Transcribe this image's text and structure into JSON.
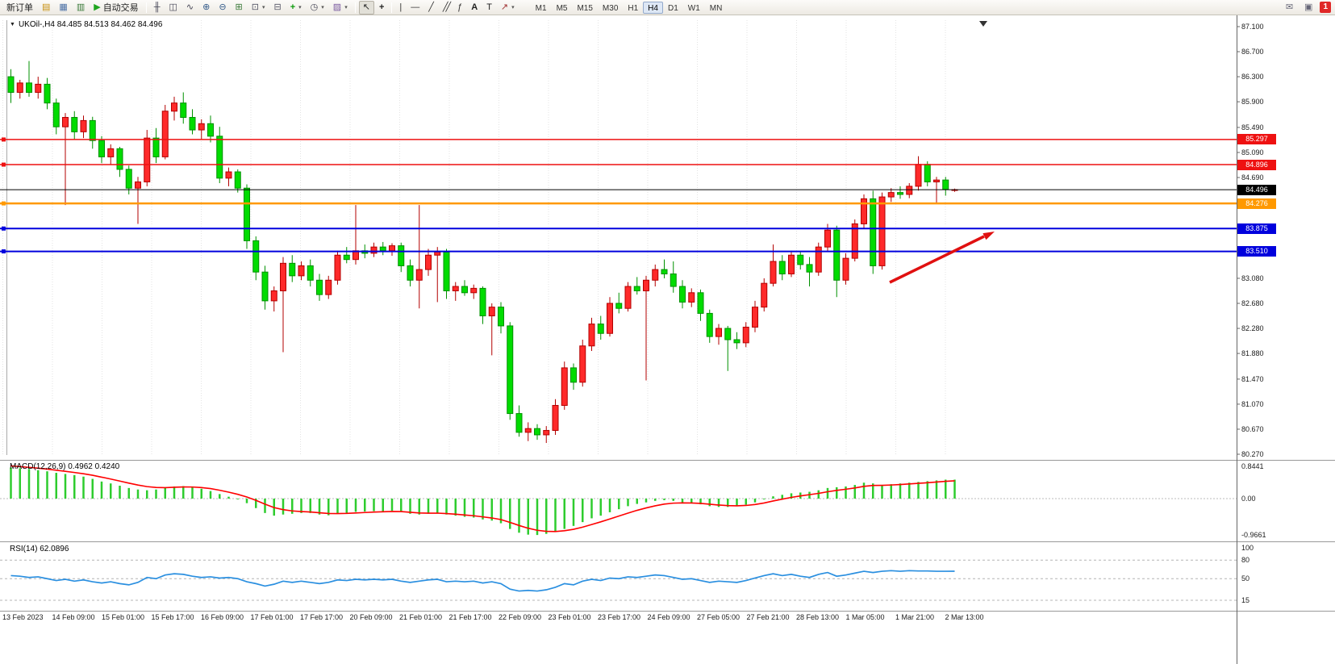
{
  "toolbar": {
    "new_order_label": "新订单",
    "autotrade_label": "自动交易",
    "timeframes": [
      "M1",
      "M5",
      "M15",
      "M30",
      "H1",
      "H4",
      "D1",
      "W1",
      "MN"
    ],
    "active_timeframe": "H4",
    "notification_badge": "1"
  },
  "chart_window": {
    "title": "UKOil-,H4 84.485 84.513 84.462 84.496",
    "macd_label": "MACD(12,26,9) 0.4962 0.4240",
    "rsi_label": "RSI(14) 62.0896"
  },
  "price_axis": {
    "ticks": [
      "87.100",
      "86.700",
      "86.300",
      "85.900",
      "85.490",
      "85.090",
      "84.690",
      "83.080",
      "82.680",
      "82.280",
      "81.880",
      "81.470",
      "81.070",
      "80.670",
      "80.270"
    ]
  },
  "macd_axis": {
    "ticks": [
      "0.8441",
      "0.00",
      "-0.9661"
    ]
  },
  "rsi_axis": {
    "ticks": [
      "100",
      "80",
      "50",
      "15"
    ]
  },
  "time_axis": {
    "labels": [
      "13 Feb 2023",
      "14 Feb 09:00",
      "15 Feb 01:00",
      "15 Feb 17:00",
      "16 Feb 09:00",
      "17 Feb 01:00",
      "17 Feb 17:00",
      "20 Feb 09:00",
      "21 Feb 01:00",
      "21 Feb 17:00",
      "22 Feb 09:00",
      "23 Feb 01:00",
      "23 Feb 17:00",
      "24 Feb 09:00",
      "27 Feb 05:00",
      "27 Feb 21:00",
      "28 Feb 13:00",
      "1 Mar 05:00",
      "1 Mar 21:00",
      "2 Mar 13:00"
    ]
  },
  "chart_data": {
    "type": "candlestick",
    "symbol": "UKOil-",
    "timeframe": "H4",
    "last_ohlc": {
      "open": 84.485,
      "high": 84.513,
      "low": 84.462,
      "close": 84.496
    },
    "price_range": [
      80.27,
      87.1
    ],
    "bull_color": "#ff2a2a",
    "bear_color": "#00dc00",
    "current_price": 84.496,
    "candles": [
      [
        86.3,
        86.42,
        85.88,
        86.05
      ],
      [
        86.05,
        86.25,
        85.95,
        86.2
      ],
      [
        86.2,
        86.55,
        85.98,
        86.05
      ],
      [
        86.05,
        86.3,
        85.95,
        86.18
      ],
      [
        86.18,
        86.28,
        85.78,
        85.88
      ],
      [
        85.88,
        85.95,
        85.38,
        85.5
      ],
      [
        85.5,
        85.72,
        84.25,
        85.65
      ],
      [
        85.65,
        85.75,
        85.3,
        85.42
      ],
      [
        85.42,
        85.68,
        85.32,
        85.6
      ],
      [
        85.6,
        85.66,
        85.15,
        85.28
      ],
      [
        85.28,
        85.35,
        84.92,
        85.02
      ],
      [
        85.02,
        85.22,
        84.9,
        85.15
      ],
      [
        85.15,
        85.18,
        84.7,
        84.82
      ],
      [
        84.82,
        84.88,
        84.42,
        84.52
      ],
      [
        84.52,
        84.7,
        83.95,
        84.62
      ],
      [
        84.62,
        85.45,
        84.55,
        85.32
      ],
      [
        85.32,
        85.48,
        84.92,
        85.02
      ],
      [
        85.02,
        85.85,
        84.98,
        85.75
      ],
      [
        85.75,
        85.98,
        85.6,
        85.88
      ],
      [
        85.88,
        86.05,
        85.55,
        85.65
      ],
      [
        85.65,
        85.78,
        85.38,
        85.45
      ],
      [
        85.45,
        85.62,
        85.3,
        85.55
      ],
      [
        85.55,
        85.68,
        85.25,
        85.35
      ],
      [
        85.35,
        85.5,
        84.6,
        84.68
      ],
      [
        84.68,
        84.85,
        84.55,
        84.78
      ],
      [
        84.78,
        84.82,
        84.45,
        84.52
      ],
      [
        84.52,
        84.58,
        83.55,
        83.68
      ],
      [
        83.68,
        83.75,
        83.05,
        83.18
      ],
      [
        83.18,
        83.28,
        82.58,
        82.72
      ],
      [
        82.72,
        82.95,
        82.55,
        82.88
      ],
      [
        82.88,
        83.42,
        81.9,
        83.32
      ],
      [
        83.32,
        83.45,
        83.02,
        83.12
      ],
      [
        83.12,
        83.35,
        83.05,
        83.28
      ],
      [
        83.28,
        83.38,
        82.95,
        83.05
      ],
      [
        83.05,
        83.15,
        82.72,
        82.82
      ],
      [
        82.82,
        83.12,
        82.75,
        83.05
      ],
      [
        83.05,
        83.52,
        82.98,
        83.45
      ],
      [
        83.45,
        83.58,
        83.32,
        83.38
      ],
      [
        83.38,
        84.25,
        83.3,
        83.52
      ],
      [
        83.52,
        83.62,
        83.4,
        83.48
      ],
      [
        83.48,
        83.65,
        83.42,
        83.58
      ],
      [
        83.58,
        83.66,
        83.45,
        83.52
      ],
      [
        83.52,
        83.64,
        83.44,
        83.6
      ],
      [
        83.6,
        83.65,
        83.18,
        83.28
      ],
      [
        83.28,
        83.38,
        82.95,
        83.05
      ],
      [
        83.05,
        84.25,
        82.6,
        83.22
      ],
      [
        83.22,
        83.55,
        83.12,
        83.45
      ],
      [
        83.45,
        83.58,
        82.7,
        83.5
      ],
      [
        83.5,
        83.55,
        82.75,
        82.88
      ],
      [
        82.88,
        83.02,
        82.72,
        82.95
      ],
      [
        82.95,
        83.05,
        82.8,
        82.85
      ],
      [
        82.85,
        82.98,
        82.75,
        82.92
      ],
      [
        82.92,
        82.95,
        82.35,
        82.48
      ],
      [
        82.48,
        82.68,
        81.85,
        82.62
      ],
      [
        82.62,
        82.7,
        82.2,
        82.32
      ],
      [
        82.32,
        82.38,
        80.82,
        80.92
      ],
      [
        80.92,
        81.05,
        80.55,
        80.62
      ],
      [
        80.62,
        80.78,
        80.48,
        80.68
      ],
      [
        80.68,
        80.75,
        80.5,
        80.58
      ],
      [
        80.58,
        80.72,
        80.45,
        80.65
      ],
      [
        80.65,
        81.15,
        80.58,
        81.05
      ],
      [
        81.05,
        81.75,
        80.98,
        81.65
      ],
      [
        81.65,
        81.72,
        81.3,
        81.42
      ],
      [
        81.42,
        82.1,
        81.35,
        82.0
      ],
      [
        82.0,
        82.45,
        81.92,
        82.35
      ],
      [
        82.35,
        82.48,
        82.1,
        82.2
      ],
      [
        82.2,
        82.78,
        82.15,
        82.68
      ],
      [
        82.68,
        82.85,
        82.52,
        82.6
      ],
      [
        82.6,
        83.02,
        82.55,
        82.95
      ],
      [
        82.95,
        83.1,
        82.82,
        82.88
      ],
      [
        82.88,
        83.12,
        81.45,
        83.05
      ],
      [
        83.05,
        83.3,
        82.95,
        83.22
      ],
      [
        83.22,
        83.38,
        83.08,
        83.15
      ],
      [
        83.15,
        83.35,
        82.85,
        82.95
      ],
      [
        82.95,
        83.05,
        82.6,
        82.7
      ],
      [
        82.7,
        82.92,
        82.62,
        82.85
      ],
      [
        82.85,
        82.9,
        82.4,
        82.52
      ],
      [
        82.52,
        82.58,
        82.05,
        82.15
      ],
      [
        82.15,
        82.35,
        82.02,
        82.28
      ],
      [
        82.28,
        82.32,
        81.6,
        82.1
      ],
      [
        82.1,
        82.22,
        81.95,
        82.05
      ],
      [
        82.05,
        82.38,
        81.98,
        82.3
      ],
      [
        82.3,
        82.72,
        82.22,
        82.62
      ],
      [
        82.62,
        83.08,
        82.55,
        83.0
      ],
      [
        83.0,
        83.62,
        82.95,
        83.35
      ],
      [
        83.35,
        83.45,
        83.05,
        83.15
      ],
      [
        83.15,
        83.52,
        83.1,
        83.45
      ],
      [
        83.45,
        83.5,
        83.22,
        83.3
      ],
      [
        83.3,
        83.42,
        82.95,
        83.18
      ],
      [
        83.18,
        83.65,
        83.12,
        83.58
      ],
      [
        83.58,
        83.95,
        83.5,
        83.85
      ],
      [
        83.85,
        83.92,
        82.78,
        83.05
      ],
      [
        83.05,
        83.48,
        82.98,
        83.4
      ],
      [
        83.4,
        84.02,
        83.35,
        83.95
      ],
      [
        83.95,
        84.42,
        83.88,
        84.35
      ],
      [
        84.35,
        84.48,
        83.15,
        83.28
      ],
      [
        83.28,
        84.45,
        83.22,
        84.38
      ],
      [
        84.38,
        84.52,
        84.3,
        84.45
      ],
      [
        84.45,
        84.55,
        84.35,
        84.42
      ],
      [
        84.42,
        84.6,
        84.36,
        84.55
      ],
      [
        84.55,
        85.03,
        84.48,
        84.9
      ],
      [
        84.9,
        84.95,
        84.55,
        84.62
      ],
      [
        84.62,
        84.7,
        84.28,
        84.65
      ],
      [
        84.65,
        84.7,
        84.4,
        84.5
      ],
      [
        84.485,
        84.513,
        84.462,
        84.496
      ]
    ],
    "hlines": [
      {
        "price": 85.297,
        "color": "#ee1111",
        "weight": 1.5,
        "type": "resistance"
      },
      {
        "price": 84.896,
        "color": "#ee1111",
        "weight": 1.5,
        "type": "resistance"
      },
      {
        "price": 84.496,
        "color": "#000000",
        "weight": 1,
        "type": "current-price"
      },
      {
        "price": 84.276,
        "color": "#ff9900",
        "weight": 2.5,
        "type": "pivot"
      },
      {
        "price": 83.875,
        "color": "#0000dd",
        "weight": 2,
        "type": "support"
      },
      {
        "price": 83.51,
        "color": "#0000dd",
        "weight": 2,
        "type": "support"
      }
    ],
    "indicators": [
      {
        "name": "MACD",
        "params": "12,26,9",
        "value": 0.4962,
        "signal": 0.424,
        "histogram_color": "#2ecc2e",
        "signal_color": "#ff0000",
        "range": [
          -0.9661,
          0.8441
        ],
        "histogram": [
          0.82,
          0.8,
          0.78,
          0.75,
          0.72,
          0.68,
          0.65,
          0.62,
          0.58,
          0.52,
          0.45,
          0.4,
          0.34,
          0.28,
          0.24,
          0.22,
          0.24,
          0.28,
          0.32,
          0.33,
          0.3,
          0.26,
          0.2,
          0.12,
          0.05,
          -0.02,
          -0.12,
          -0.25,
          -0.38,
          -0.45,
          -0.42,
          -0.4,
          -0.38,
          -0.38,
          -0.42,
          -0.44,
          -0.4,
          -0.38,
          -0.35,
          -0.34,
          -0.33,
          -0.33,
          -0.32,
          -0.35,
          -0.4,
          -0.42,
          -0.4,
          -0.38,
          -0.42,
          -0.45,
          -0.48,
          -0.5,
          -0.55,
          -0.58,
          -0.65,
          -0.8,
          -0.9,
          -0.95,
          -0.96,
          -0.93,
          -0.88,
          -0.8,
          -0.72,
          -0.62,
          -0.52,
          -0.45,
          -0.36,
          -0.28,
          -0.2,
          -0.14,
          -0.1,
          -0.06,
          -0.04,
          -0.06,
          -0.1,
          -0.12,
          -0.15,
          -0.2,
          -0.22,
          -0.22,
          -0.2,
          -0.16,
          -0.1,
          -0.02,
          0.06,
          0.1,
          0.14,
          0.16,
          0.18,
          0.22,
          0.28,
          0.3,
          0.32,
          0.36,
          0.42,
          0.4,
          0.36,
          0.38,
          0.4,
          0.42,
          0.44,
          0.46,
          0.48,
          0.5,
          0.5
        ]
      },
      {
        "name": "RSI",
        "params": "14",
        "value": 62.0896,
        "color": "#2a8fe0",
        "levels": [
          80,
          50,
          15
        ],
        "range": [
          0,
          100
        ],
        "series": [
          55,
          54,
          52,
          53,
          50,
          47,
          49,
          46,
          48,
          45,
          43,
          45,
          42,
          40,
          44,
          52,
          50,
          56,
          58,
          57,
          54,
          52,
          53,
          51,
          52,
          50,
          45,
          42,
          38,
          41,
          46,
          44,
          46,
          44,
          42,
          44,
          48,
          47,
          49,
          48,
          49,
          48,
          49,
          46,
          44,
          46,
          48,
          49,
          45,
          46,
          45,
          46,
          43,
          45,
          42,
          33,
          30,
          31,
          30,
          32,
          36,
          42,
          40,
          46,
          49,
          47,
          51,
          50,
          53,
          52,
          54,
          56,
          55,
          52,
          49,
          50,
          47,
          44,
          46,
          45,
          44,
          47,
          51,
          55,
          58,
          55,
          57,
          54,
          52,
          57,
          60,
          54,
          56,
          59,
          62,
          60,
          62,
          63,
          62,
          63,
          62.5,
          62.5,
          62,
          62,
          62.1
        ]
      }
    ],
    "annotations": [
      {
        "type": "arrow",
        "color": "#e01010",
        "note": "up arrow pointing toward 83.875 support line"
      }
    ]
  }
}
